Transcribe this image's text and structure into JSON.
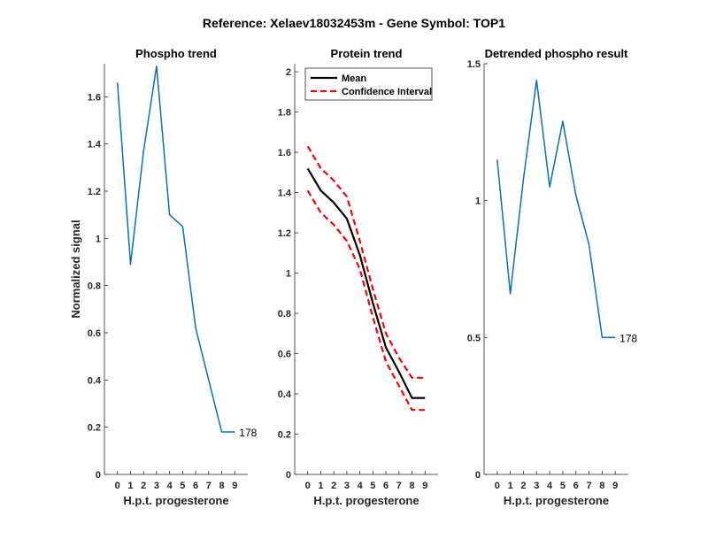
{
  "figure_title": "Reference:  Xelaev18032453m - Gene Symbol:  TOP1",
  "chart_data": [
    {
      "type": "line",
      "title": "Phospho trend",
      "xlabel": "H.p.t. progesterone",
      "ylabel": "Normalized signal",
      "xlim": [
        -1,
        10
      ],
      "ylim": [
        0,
        1.74
      ],
      "xticks": [
        0,
        1,
        2,
        3,
        4,
        5,
        6,
        7,
        8,
        9
      ],
      "yticks": [
        0,
        0.2,
        0.4,
        0.6,
        0.8,
        1,
        1.2,
        1.4,
        1.6
      ],
      "ytick_labels": [
        "0",
        "0.2",
        "0.4",
        "0.6",
        "0.8",
        "1",
        "1.2",
        "1.4",
        "1.6"
      ],
      "series": [
        {
          "name": "Phospho",
          "color": "#0072bd",
          "style": "solid",
          "x": [
            0,
            1,
            2,
            3,
            4,
            5,
            6,
            7,
            8,
            9
          ],
          "values": [
            1.66,
            0.89,
            1.37,
            1.73,
            1.1,
            1.05,
            0.62,
            0.4,
            0.18,
            0.18
          ]
        }
      ],
      "annotation": {
        "text": "178",
        "x": 9,
        "y": 0.18
      }
    },
    {
      "type": "line",
      "title": "Protein trend",
      "xlabel": "H.p.t. progesterone",
      "ylabel": "",
      "xlim": [
        -1,
        10
      ],
      "ylim": [
        0,
        2.04
      ],
      "xticks": [
        0,
        1,
        2,
        3,
        4,
        5,
        6,
        7,
        8,
        9
      ],
      "yticks": [
        0,
        0.2,
        0.4,
        0.6,
        0.8,
        1,
        1.2,
        1.4,
        1.6,
        1.8,
        2
      ],
      "ytick_labels": [
        "0",
        "0.2",
        "0.4",
        "0.6",
        "0.8",
        "1",
        "1.2",
        "1.4",
        "1.6",
        "1.8",
        "2"
      ],
      "legend": {
        "position": "top-left",
        "entries": [
          "Mean",
          "Confidence Interval"
        ]
      },
      "series": [
        {
          "name": "Mean",
          "color": "#000000",
          "style": "solid",
          "x": [
            0,
            1,
            2,
            3,
            4,
            5,
            6,
            7,
            8,
            9
          ],
          "values": [
            1.52,
            1.41,
            1.35,
            1.27,
            1.09,
            0.85,
            0.63,
            0.51,
            0.38,
            0.38
          ]
        },
        {
          "name": "Confidence Interval",
          "color": "#ff0000",
          "style": "dashed",
          "x": [
            0,
            1,
            2,
            3,
            4,
            5,
            6,
            7,
            8,
            9
          ],
          "values": [
            1.63,
            1.52,
            1.46,
            1.38,
            1.16,
            0.92,
            0.7,
            0.58,
            0.48,
            0.48
          ]
        },
        {
          "name": "Confidence Interval",
          "color": "#ff0000",
          "style": "dashed",
          "in_legend": false,
          "x": [
            0,
            1,
            2,
            3,
            4,
            5,
            6,
            7,
            8,
            9
          ],
          "values": [
            1.41,
            1.3,
            1.24,
            1.16,
            1.02,
            0.78,
            0.56,
            0.44,
            0.32,
            0.32
          ]
        }
      ]
    },
    {
      "type": "line",
      "title": "Detrended phospho result",
      "xlabel": "H.p.t. progesterone",
      "ylabel": "",
      "xlim": [
        -1,
        10
      ],
      "ylim": [
        0,
        1.5
      ],
      "xticks": [
        0,
        1,
        2,
        3,
        4,
        5,
        6,
        7,
        8,
        9
      ],
      "yticks": [
        0,
        0.5,
        1,
        1.5
      ],
      "ytick_labels": [
        "0",
        "0.5",
        "1",
        "1.5"
      ],
      "series": [
        {
          "name": "Detrended",
          "color": "#0072bd",
          "style": "solid",
          "x": [
            0,
            1,
            2,
            3,
            4,
            5,
            6,
            7,
            8,
            9
          ],
          "values": [
            1.15,
            0.66,
            1.08,
            1.44,
            1.05,
            1.29,
            1.02,
            0.84,
            0.5,
            0.5
          ]
        }
      ],
      "annotation": {
        "text": "178",
        "x": 9,
        "y": 0.5
      }
    }
  ]
}
